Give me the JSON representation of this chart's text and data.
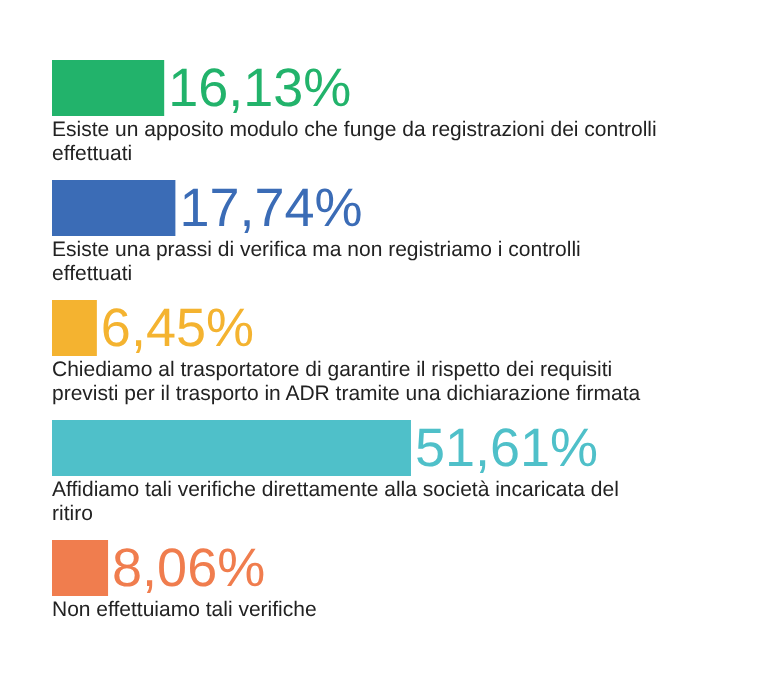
{
  "chart_data": {
    "type": "bar",
    "orientation": "horizontal",
    "categories": [
      "Esiste un apposito modulo che funge da registrazioni dei controlli effettuati",
      "Esiste una prassi di verifica ma non registriamo i controlli effettuati",
      "Chiediamo al trasportatore di garantire il rispetto dei requisiti previsti per il trasporto in ADR tramite una dichiarazione firmata",
      "Affidiamo tali verifiche direttamente alla società incaricata del ritiro",
      "Non effettuiamo tali verifiche"
    ],
    "values": [
      16.13,
      17.74,
      6.45,
      51.61,
      8.06
    ],
    "colors": [
      "#22b36b",
      "#3b6cb6",
      "#f4b330",
      "#4fc0c9",
      "#f07d4e"
    ],
    "value_labels": [
      "16,13%",
      "17,74%",
      "6,45%",
      "51,61%",
      "8,06%"
    ]
  }
}
